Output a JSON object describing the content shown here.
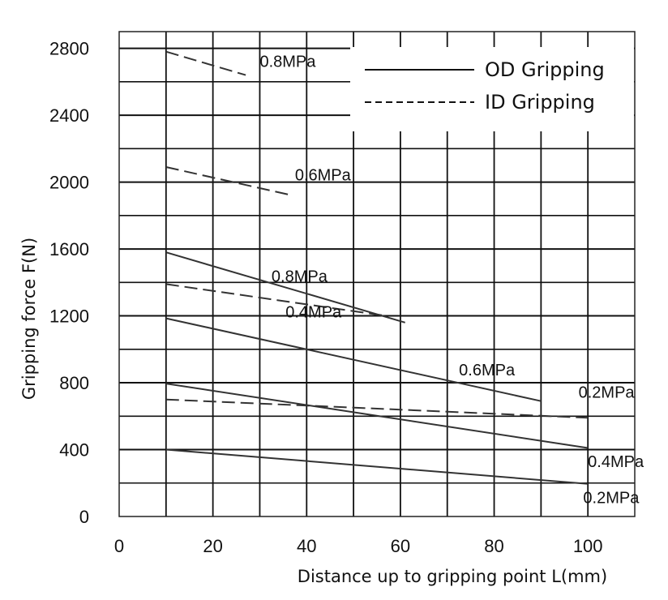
{
  "chart_data": {
    "type": "line",
    "title": "",
    "xlabel": "Distance up to gripping point L(mm)",
    "ylabel": "Gripping force F(N)",
    "xlim": [
      0,
      110
    ],
    "ylim": [
      0,
      2900
    ],
    "xticks": [
      0,
      20,
      40,
      60,
      80,
      100
    ],
    "yticks": [
      0,
      400,
      800,
      1200,
      1600,
      2000,
      2400,
      2800
    ],
    "grid": true,
    "legend_position": "top-right",
    "legend": [
      {
        "label": "OD Gripping",
        "style": "solid"
      },
      {
        "label": "ID Gripping",
        "style": "dashed"
      }
    ],
    "series": [
      {
        "group": "OD Gripping",
        "label": "0.2MPa",
        "style": "solid",
        "x": [
          10,
          100
        ],
        "y": [
          400,
          195
        ]
      },
      {
        "group": "OD Gripping",
        "label": "0.4MPa",
        "style": "solid",
        "x": [
          10,
          100
        ],
        "y": [
          795,
          410
        ]
      },
      {
        "group": "OD Gripping",
        "label": "0.6MPa",
        "style": "solid",
        "x": [
          10,
          90
        ],
        "y": [
          1185,
          690
        ]
      },
      {
        "group": "OD Gripping",
        "label": "0.8MPa",
        "style": "solid",
        "x": [
          10,
          61
        ],
        "y": [
          1580,
          1160
        ]
      },
      {
        "group": "ID Gripping",
        "label": "0.2MPa",
        "style": "dashed",
        "x": [
          10,
          100
        ],
        "y": [
          700,
          590
        ]
      },
      {
        "group": "ID Gripping",
        "label": "0.4MPa",
        "style": "dashed",
        "x": [
          10,
          57
        ],
        "y": [
          1390,
          1200
        ]
      },
      {
        "group": "ID Gripping",
        "label": "0.6MPa",
        "style": "dashed",
        "x": [
          10,
          37
        ],
        "y": [
          2090,
          1920
        ]
      },
      {
        "group": "ID Gripping",
        "label": "0.8MPa",
        "style": "dashed",
        "x": [
          10,
          27
        ],
        "y": [
          2780,
          2640
        ]
      }
    ],
    "annotations": [
      {
        "text": "0.8MPa",
        "x": 30,
        "y": 2690,
        "anchor": "start"
      },
      {
        "text": "0.6MPa",
        "x": 37.5,
        "y": 2010,
        "anchor": "start"
      },
      {
        "text": "0.8MPa",
        "x": 32.5,
        "y": 1405,
        "anchor": "start"
      },
      {
        "text": "0.4MPa",
        "x": 35.5,
        "y": 1190,
        "anchor": "start"
      },
      {
        "text": "0.6MPa",
        "x": 72.5,
        "y": 845,
        "anchor": "start"
      },
      {
        "text": "0.2MPa",
        "x": 98,
        "y": 710,
        "anchor": "start"
      },
      {
        "text": "0.4MPa",
        "x": 100,
        "y": 295,
        "anchor": "start"
      },
      {
        "text": "0.2MPa",
        "x": 99,
        "y": 80,
        "anchor": "start"
      }
    ]
  }
}
